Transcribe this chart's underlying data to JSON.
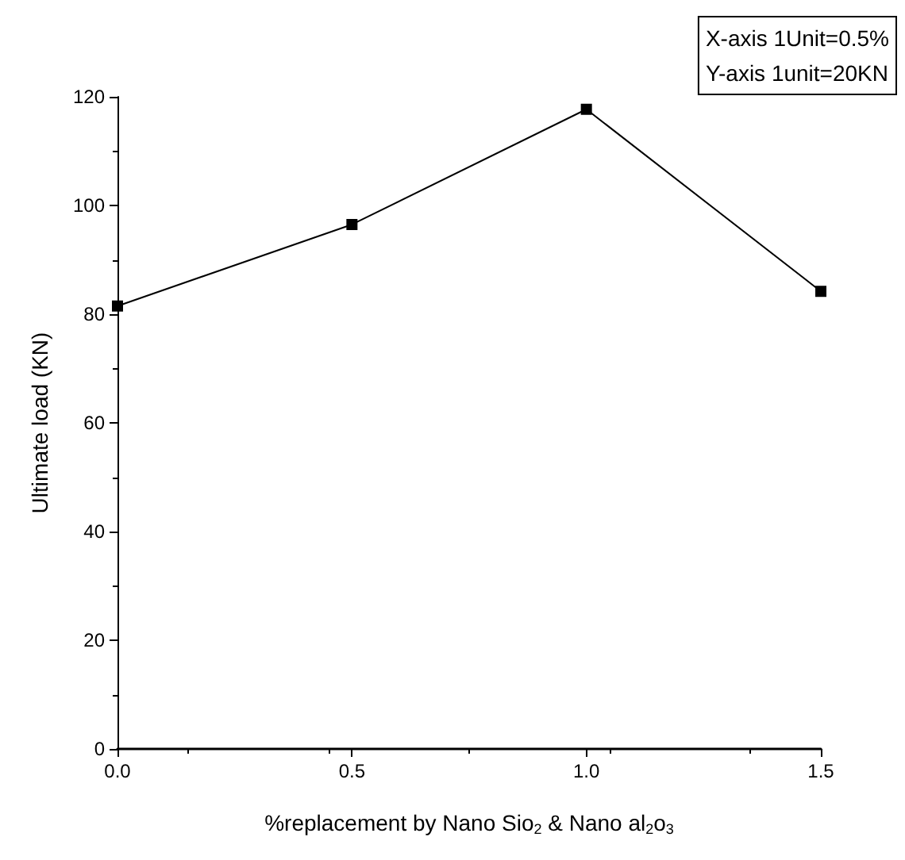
{
  "chart_data": {
    "type": "line",
    "xlabel": "%replacement by Nano Sio$_{2}$ & Nano al$_{2}$o$_{3}$",
    "ylabel": "Ultimate load (KN)",
    "annotations": [
      "X-axis 1Unit=0.5%",
      "Y-axis 1unit=20KN"
    ],
    "x": [
      0,
      0.5,
      1.0,
      1.5
    ],
    "series": [
      {
        "color": "#000000",
        "values": [
          81.5,
          96.5,
          117.7,
          84.2
        ]
      }
    ],
    "xlim": [
      0,
      1.5
    ],
    "xticks": [
      {
        "value": 0,
        "label": "0.0"
      },
      0.5,
      {
        "value": 1,
        "label": "1.0"
      },
      1.5
    ],
    "ylim": [
      0,
      120
    ],
    "yticks": [
      0,
      20,
      40,
      60,
      80,
      100,
      120
    ],
    "grid": false,
    "marker": "square",
    "line_style": "solid"
  }
}
